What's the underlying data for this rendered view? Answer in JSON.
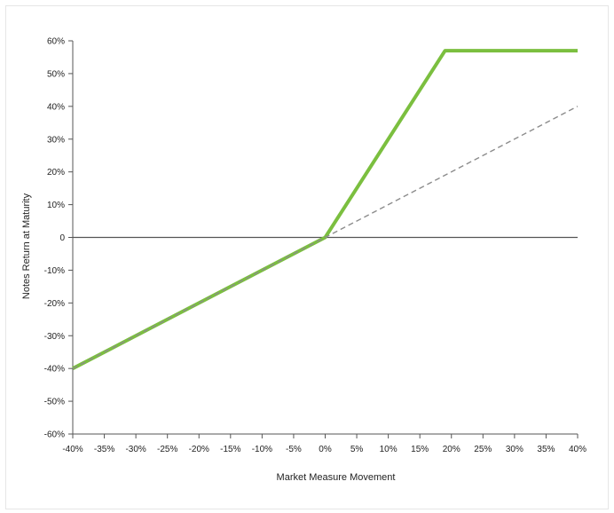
{
  "chart_data": {
    "type": "line",
    "title": "",
    "xlabel": "Market Measure Movement",
    "ylabel": "Notes Return at Maturity",
    "xlim": [
      -40,
      40
    ],
    "ylim": [
      -60,
      60
    ],
    "x_ticks": [
      "-40%",
      "-35%",
      "-30%",
      "-25%",
      "-20%",
      "-15%",
      "-10%",
      "-5%",
      "0%",
      "5%",
      "10%",
      "15%",
      "20%",
      "25%",
      "30%",
      "35%",
      "40%"
    ],
    "x_tick_values": [
      -40,
      -35,
      -30,
      -25,
      -20,
      -15,
      -10,
      -5,
      0,
      5,
      10,
      15,
      20,
      25,
      30,
      35,
      40
    ],
    "y_ticks": [
      "60%",
      "50%",
      "40%",
      "30%",
      "20%",
      "10%",
      "0",
      "-10%",
      "-20%",
      "-30%",
      "-40%",
      "-50%",
      "-60%"
    ],
    "y_tick_values": [
      60,
      50,
      40,
      30,
      20,
      10,
      0,
      -10,
      -20,
      -30,
      -40,
      -50,
      -60
    ],
    "grid": false,
    "legend": false,
    "series": [
      {
        "color": "#7bbf3f",
        "style": "solid",
        "x": [
          -40,
          0,
          19,
          40
        ],
        "y": [
          -40,
          0,
          57,
          57
        ]
      },
      {
        "color": "#8c8c8c",
        "style": "dashed",
        "x": [
          -40,
          0,
          40
        ],
        "y": [
          -40,
          0,
          40
        ]
      }
    ],
    "zero_line_color": "#555555"
  }
}
